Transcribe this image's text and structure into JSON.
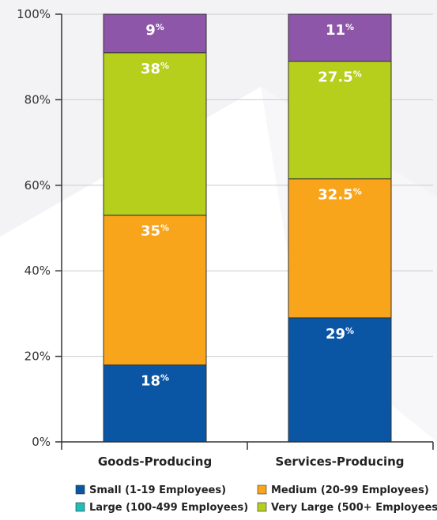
{
  "chart_data": {
    "type": "bar",
    "stacked": true,
    "categories": [
      "Goods-Producing",
      "Services-Producing"
    ],
    "series": [
      {
        "name": "Small (1-19 Employees)",
        "color": "#0b56a4",
        "values": [
          18,
          29
        ],
        "labels": [
          "18",
          "29"
        ]
      },
      {
        "name": "Medium (20-99 Employees)",
        "color": "#f9a51b",
        "values": [
          35,
          32.5
        ],
        "labels": [
          "35",
          "32.5"
        ]
      },
      {
        "name": "Large (100-499 Employees)",
        "color": "#1fbfb8",
        "values": [
          0,
          0
        ],
        "labels": [
          "",
          ""
        ]
      },
      {
        "name": "Very Large (500+ Employees)",
        "color": "#b5cf1c",
        "values": [
          38,
          27.5
        ],
        "labels": [
          "38",
          "27.5"
        ]
      },
      {
        "name": "",
        "color": "#8e56a8",
        "values": [
          9,
          11
        ],
        "labels": [
          "9",
          "11"
        ]
      }
    ],
    "ylim": [
      0,
      100
    ],
    "yticks": [
      "0%",
      "20%",
      "40%",
      "60%",
      "80%",
      "100%"
    ],
    "ytick_values": [
      0,
      20,
      40,
      60,
      80,
      100
    ],
    "value_suffix": "%",
    "grid": true,
    "legend_position": "bottom"
  },
  "colors": {
    "background_accent": "#f3f3f6",
    "grid": "#cccccc",
    "axis": "#333333",
    "bar_border": "#ffffff"
  }
}
